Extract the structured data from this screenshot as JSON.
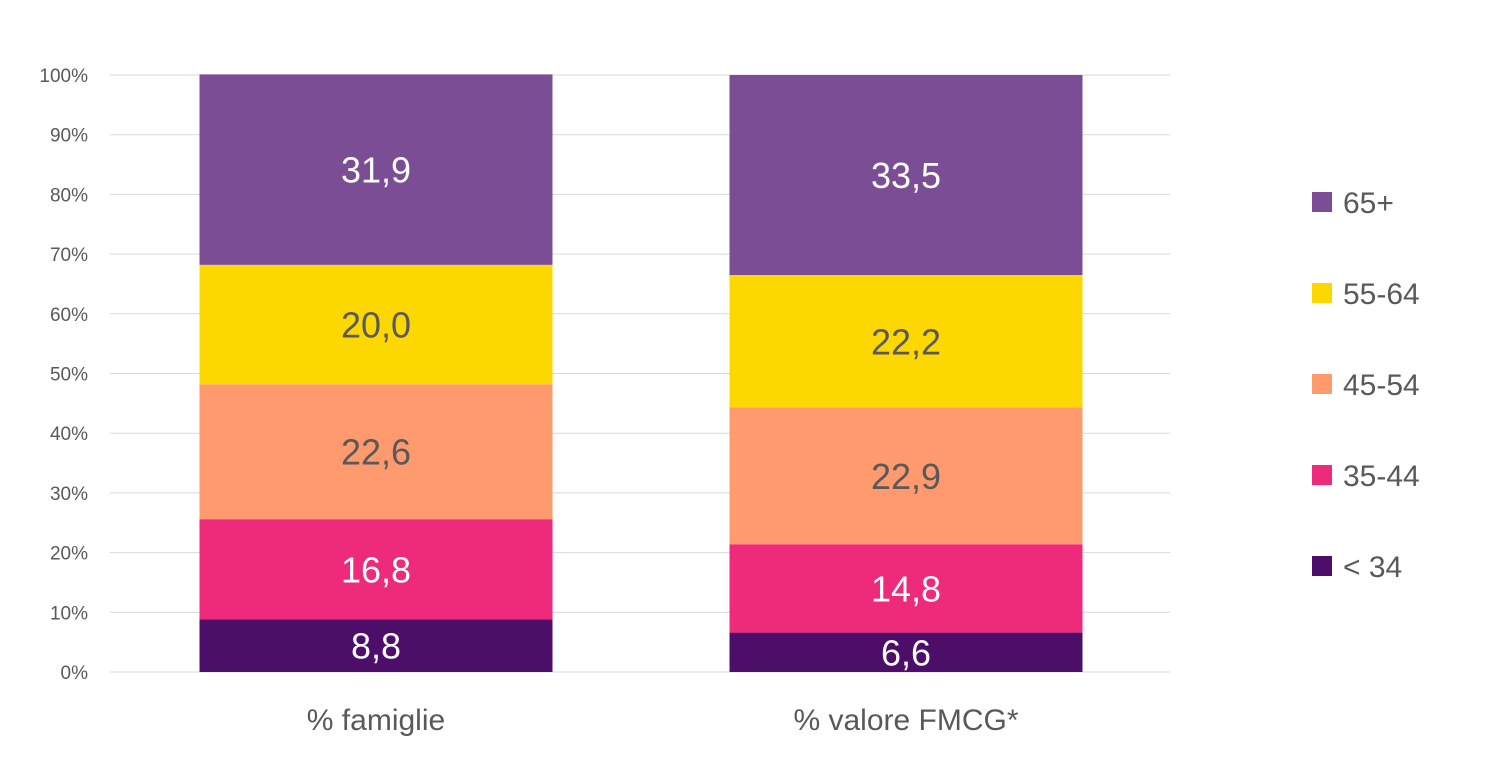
{
  "chart_data": {
    "type": "bar",
    "stacked": true,
    "percent_stacked": true,
    "categories": [
      "% famiglie",
      "% valore FMCG*"
    ],
    "series": [
      {
        "name": "< 34",
        "values": [
          8.8,
          6.6
        ],
        "labels": [
          "8,8",
          "6,6"
        ],
        "color": "#4D0E6A",
        "label_color": "#ffffff"
      },
      {
        "name": "35-44",
        "values": [
          16.8,
          14.8
        ],
        "labels": [
          "16,8",
          "14,8"
        ],
        "color": "#EE2A7B",
        "label_color": "#ffffff"
      },
      {
        "name": "45-54",
        "values": [
          22.6,
          22.9
        ],
        "labels": [
          "22,6",
          "22,9"
        ],
        "color": "#FF9A6E",
        "label_color": "#595959"
      },
      {
        "name": "55-64",
        "values": [
          20.0,
          22.2
        ],
        "labels": [
          "20,0",
          "22,2"
        ],
        "color": "#FDD800",
        "label_color": "#595959"
      },
      {
        "name": "65+",
        "values": [
          31.9,
          33.5
        ],
        "labels": [
          "31,9",
          "33,5"
        ],
        "color": "#7A4D94",
        "label_color": "#ffffff"
      }
    ],
    "yticks": [
      "0%",
      "10%",
      "20%",
      "30%",
      "40%",
      "50%",
      "60%",
      "70%",
      "80%",
      "90%",
      "100%"
    ],
    "ylim": [
      0,
      100
    ],
    "grid": true,
    "grid_color": "#D9D9D9",
    "legend": "right",
    "legend_order": [
      "65+",
      "55-64",
      "45-54",
      "35-44",
      "< 34"
    ],
    "title": "",
    "xlabel": "",
    "ylabel": ""
  }
}
